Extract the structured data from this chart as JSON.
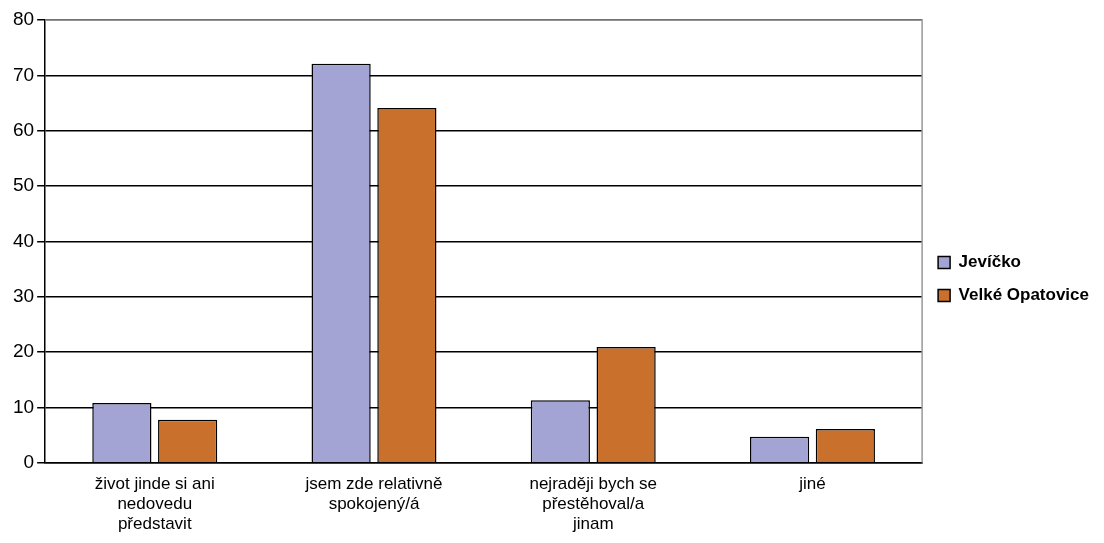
{
  "chart_data": {
    "type": "bar",
    "categories": [
      "život jinde si ani nedovedu představit",
      "jsem zde relativně spokojený/á",
      "nejraději bych se přestěhoval/a jinam",
      "jiné"
    ],
    "series": [
      {
        "name": "Jevíčko",
        "color": "#a4a4d4",
        "values": [
          10.8,
          72.1,
          11.3,
          4.7
        ]
      },
      {
        "name": "Velké Opatovice",
        "color": "#c8702c",
        "values": [
          7.8,
          64.1,
          20.9,
          6.1
        ]
      }
    ],
    "ylim": [
      0,
      80
    ],
    "yticks": [
      0,
      10,
      20,
      30,
      40,
      50,
      60,
      70,
      80
    ],
    "grid": "y",
    "legend": "right"
  }
}
